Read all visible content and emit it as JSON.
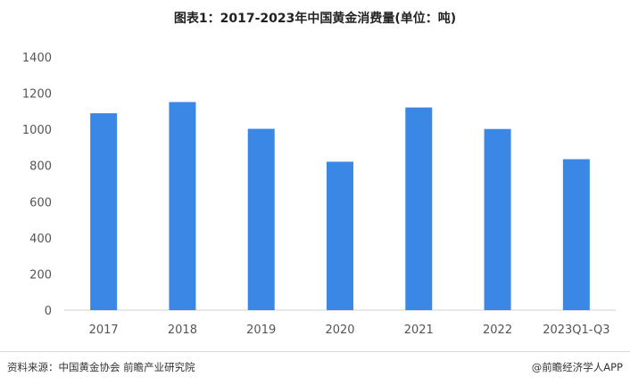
{
  "chart_data": {
    "type": "bar",
    "title": "图表1：2017-2023年中国黄金消费量(单位：吨)",
    "categories": [
      "2017",
      "2018",
      "2019",
      "2020",
      "2021",
      "2022",
      "2023Q1-Q3"
    ],
    "values": [
      1089,
      1151,
      1003,
      821,
      1121,
      1002,
      835
    ],
    "ylim": [
      0,
      1400
    ],
    "yticks": [
      0,
      200,
      400,
      600,
      800,
      1000,
      1200,
      1400
    ],
    "grid": false,
    "bar_color": "#3a87e6",
    "xlabel": "",
    "ylabel": ""
  },
  "footer": {
    "source": "资料来源：中国黄金协会 前瞻产业研究院",
    "brand": "@前瞻经济学人APP"
  },
  "watermark": "前瞻产业研究院"
}
